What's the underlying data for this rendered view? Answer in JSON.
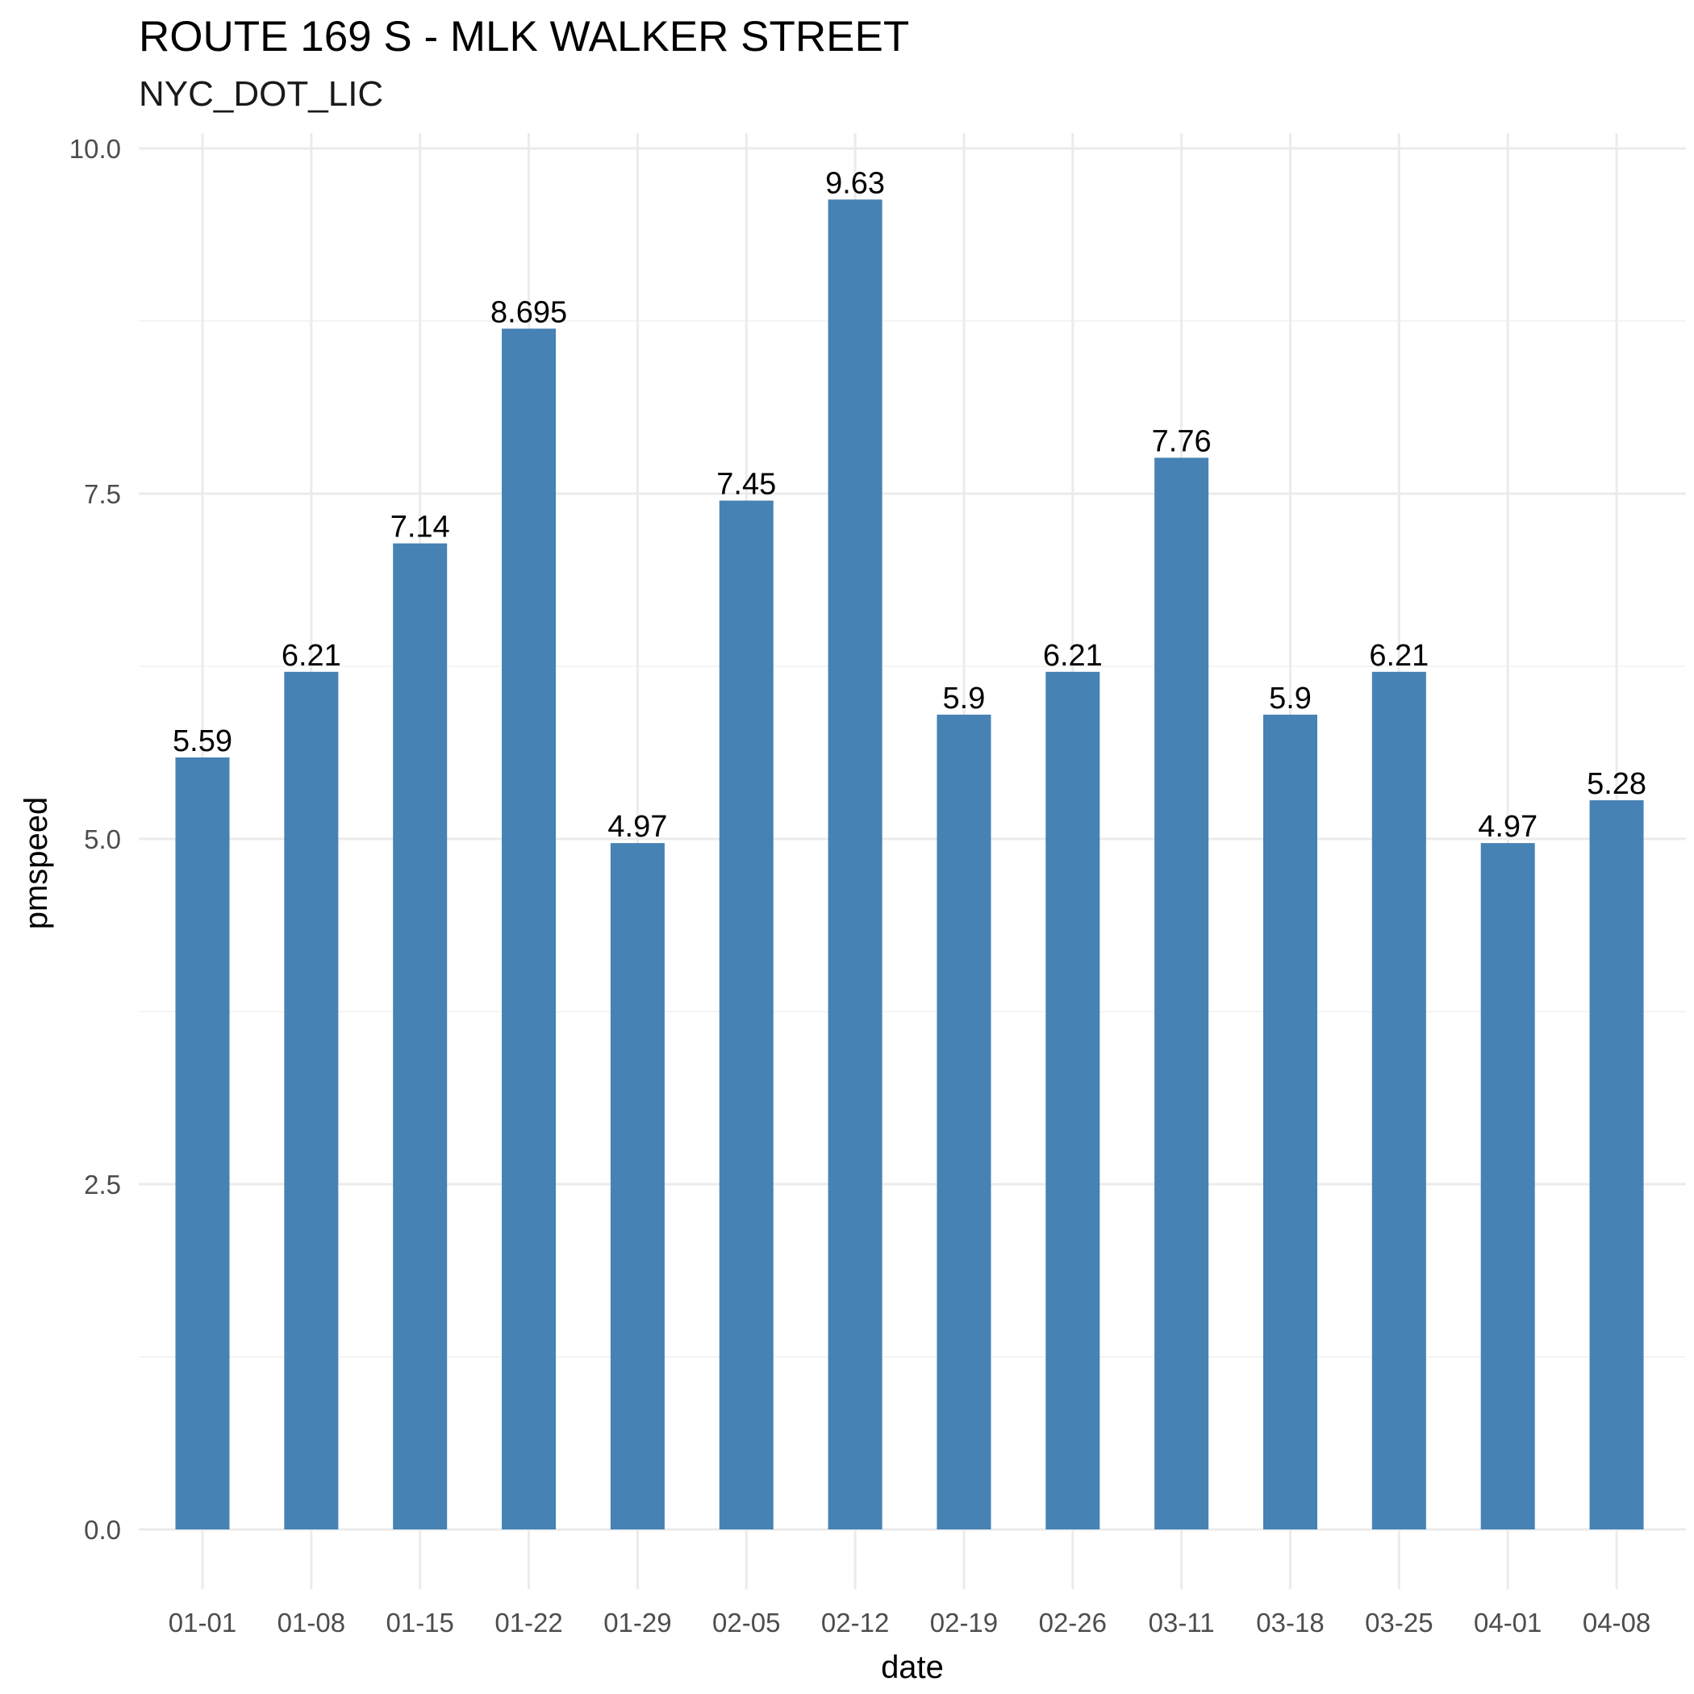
{
  "chart_data": {
    "type": "bar",
    "title": "ROUTE 169 S - MLK WALKER STREET",
    "subtitle": "NYC_DOT_LIC",
    "xlabel": "date",
    "ylabel": "pmspeed",
    "categories": [
      "01-01",
      "01-08",
      "01-15",
      "01-22",
      "01-29",
      "02-05",
      "02-12",
      "02-19",
      "02-26",
      "03-11",
      "03-18",
      "03-25",
      "04-01",
      "04-08"
    ],
    "values": [
      5.59,
      6.21,
      7.14,
      8.695,
      4.97,
      7.45,
      9.63,
      5.9,
      6.21,
      7.76,
      5.9,
      6.21,
      4.97,
      5.28
    ],
    "value_labels": [
      "5.59",
      "6.21",
      "7.14",
      "8.695",
      "4.97",
      "7.45",
      "9.63",
      "5.9",
      "6.21",
      "7.76",
      "5.9",
      "6.21",
      "4.97",
      "5.28"
    ],
    "ylim": [
      0,
      10
    ],
    "yticks": [
      0,
      2.5,
      5,
      7.5,
      10
    ],
    "ytick_labels": [
      "0.0",
      "2.5",
      "5.0",
      "7.5",
      "10.0"
    ],
    "grid": true,
    "legend": "none",
    "bar_color": "#4682b4"
  }
}
